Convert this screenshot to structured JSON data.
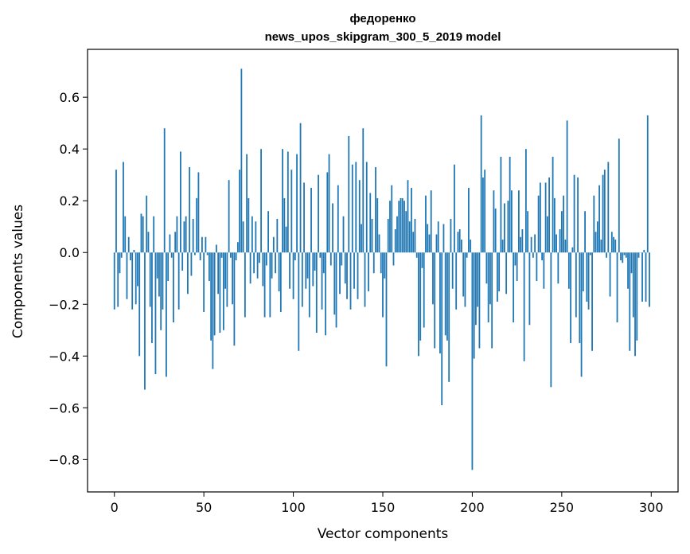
{
  "chart_data": {
    "type": "bar",
    "title": "федоренко",
    "subtitle": "news_upos_skipgram_300_5_2019 model",
    "xlabel": "Vector components",
    "ylabel": "Components values",
    "xlim": [
      -15,
      315
    ],
    "ylim": [
      -0.925,
      0.785
    ],
    "xticks": [
      0,
      50,
      100,
      150,
      200,
      250,
      300
    ],
    "xtick_labels": [
      "0",
      "50",
      "100",
      "150",
      "200",
      "250",
      "300"
    ],
    "yticks": [
      -0.8,
      -0.6,
      -0.4,
      -0.2,
      0.0,
      0.2,
      0.4,
      0.6
    ],
    "ytick_labels": [
      "−0.8",
      "−0.6",
      "−0.4",
      "−0.2",
      "0.0",
      "0.2",
      "0.4",
      "0.6"
    ],
    "grid": false,
    "bar_color": "#1f77b4",
    "values": [
      -0.22,
      0.32,
      -0.21,
      -0.08,
      -0.02,
      0.35,
      0.14,
      -0.18,
      0.06,
      -0.03,
      -0.22,
      0.01,
      -0.2,
      -0.13,
      -0.4,
      0.15,
      0.14,
      -0.53,
      0.22,
      0.08,
      -0.21,
      -0.35,
      0.14,
      -0.47,
      -0.1,
      -0.17,
      -0.3,
      -0.22,
      0.48,
      -0.48,
      -0.11,
      0.07,
      -0.02,
      -0.27,
      0.08,
      0.14,
      -0.22,
      0.39,
      -0.07,
      0.12,
      0.14,
      -0.16,
      0.33,
      -0.09,
      0.13,
      -0.01,
      0.21,
      0.31,
      -0.03,
      0.06,
      -0.23,
      0.06,
      -0.01,
      -0.11,
      -0.34,
      -0.45,
      -0.32,
      0.03,
      -0.16,
      -0.31,
      -0.02,
      -0.3,
      -0.14,
      -0.21,
      0.28,
      -0.02,
      -0.2,
      -0.36,
      -0.03,
      0.04,
      0.32,
      0.71,
      0.12,
      -0.25,
      0.38,
      0.21,
      -0.12,
      0.14,
      -0.08,
      0.12,
      -0.1,
      -0.04,
      0.4,
      -0.13,
      -0.25,
      -0.05,
      0.16,
      -0.25,
      -0.1,
      0.06,
      -0.08,
      0.13,
      -0.15,
      -0.23,
      0.4,
      0.21,
      0.1,
      0.39,
      -0.14,
      0.32,
      -0.18,
      -0.03,
      0.38,
      -0.38,
      0.5,
      -0.21,
      0.27,
      -0.14,
      -0.1,
      -0.25,
      0.25,
      -0.13,
      -0.07,
      -0.31,
      0.3,
      -0.02,
      -0.22,
      -0.08,
      -0.32,
      0.31,
      0.38,
      -0.05,
      0.19,
      -0.24,
      -0.29,
      0.26,
      -0.16,
      -0.05,
      0.14,
      -0.12,
      -0.18,
      0.45,
      -0.22,
      0.34,
      -0.14,
      0.35,
      -0.18,
      0.28,
      0.11,
      0.48,
      -0.21,
      0.35,
      -0.15,
      0.23,
      0.13,
      -0.08,
      0.33,
      0.21,
      0.07,
      -0.08,
      -0.25,
      -0.1,
      -0.44,
      0.13,
      0.2,
      0.26,
      -0.05,
      0.09,
      0.14,
      0.2,
      0.21,
      0.21,
      0.2,
      0.16,
      0.28,
      0.12,
      0.25,
      0.08,
      0.13,
      -0.02,
      -0.4,
      -0.34,
      -0.06,
      -0.29,
      0.22,
      0.11,
      0.07,
      0.24,
      -0.2,
      -0.37,
      0.07,
      0.12,
      -0.39,
      -0.59,
      0.11,
      -0.32,
      -0.34,
      -0.5,
      0.13,
      -0.14,
      0.34,
      -0.22,
      0.08,
      0.09,
      0.05,
      -0.17,
      -0.21,
      -0.02,
      0.25,
      0.05,
      -0.84,
      -0.41,
      -0.28,
      -0.21,
      -0.37,
      0.53,
      0.29,
      0.32,
      -0.12,
      -0.27,
      -0.2,
      -0.37,
      0.24,
      0.17,
      -0.19,
      -0.15,
      0.37,
      0.05,
      0.19,
      -0.16,
      0.2,
      0.37,
      0.24,
      -0.27,
      -0.05,
      -0.11,
      0.24,
      0.06,
      0.09,
      -0.42,
      0.4,
      0.16,
      -0.28,
      0.06,
      -0.02,
      0.07,
      -0.11,
      0.22,
      0.27,
      -0.03,
      -0.14,
      0.27,
      0.14,
      0.29,
      -0.52,
      0.37,
      0.21,
      0.07,
      -0.12,
      0.09,
      0.16,
      0.22,
      0.05,
      0.51,
      -0.14,
      -0.35,
      0.02,
      0.3,
      -0.25,
      0.29,
      -0.35,
      -0.48,
      -0.15,
      0.16,
      -0.19,
      -0.22,
      -0.01,
      -0.38,
      0.22,
      0.08,
      0.12,
      0.26,
      0.05,
      0.3,
      0.32,
      -0.02,
      0.35,
      -0.17,
      0.08,
      0.06,
      0.05,
      -0.27,
      0.44,
      -0.03,
      -0.04,
      -0.01,
      -0.02,
      -0.14,
      -0.38,
      -0.08,
      -0.25,
      -0.4,
      -0.34,
      -0.02,
      0.0,
      -0.19,
      0.01,
      -0.19,
      0.53,
      -0.21
    ]
  }
}
